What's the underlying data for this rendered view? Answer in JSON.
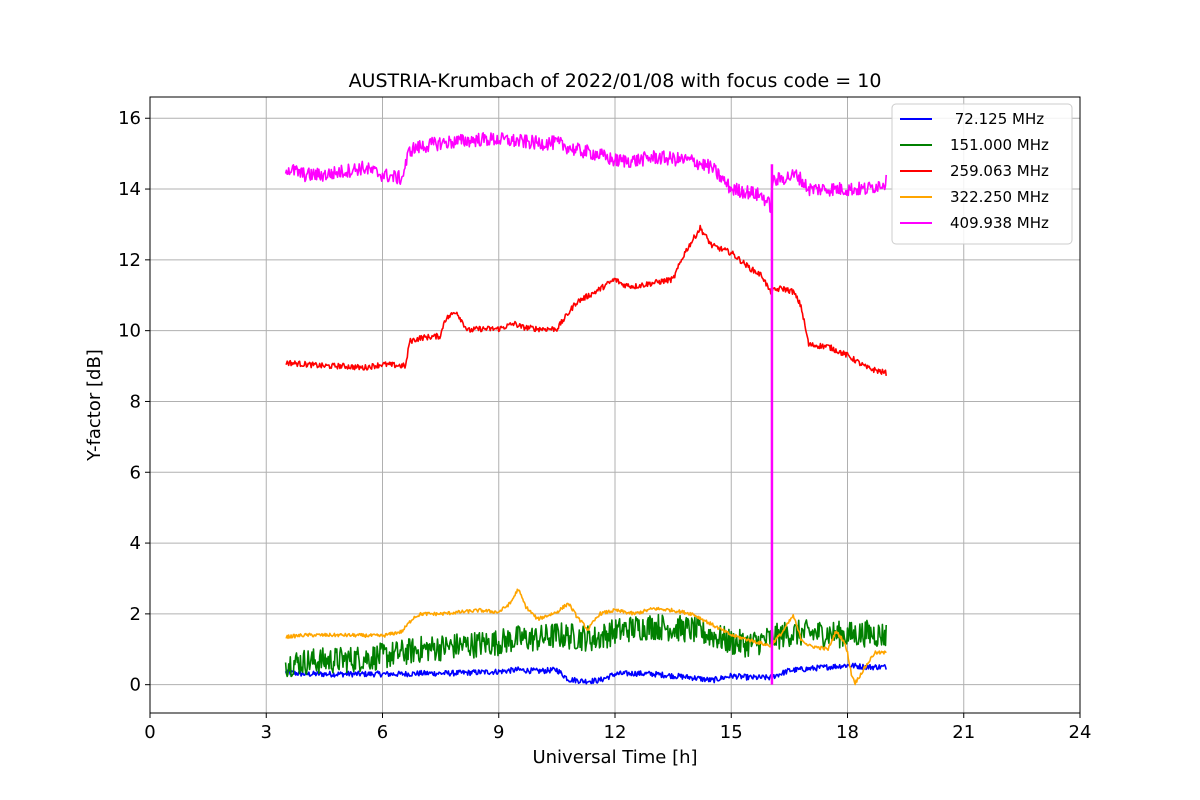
{
  "chart_data": {
    "type": "line",
    "title": "AUSTRIA-Krumbach of 2022/01/08 with focus code = 10",
    "xlabel": "Universal Time [h]",
    "ylabel": "Y-factor [dB]",
    "xlim": [
      0,
      24
    ],
    "ylim": [
      -0.8,
      16.6
    ],
    "xticks": [
      0,
      3,
      6,
      9,
      12,
      15,
      18,
      21,
      24
    ],
    "xtick_labels": [
      "0",
      "3",
      "6",
      "9",
      "12",
      "15",
      "18",
      "21",
      "24"
    ],
    "yticks": [
      0,
      2,
      4,
      6,
      8,
      10,
      12,
      14,
      16
    ],
    "ytick_labels": [
      "0",
      "2",
      "4",
      "6",
      "8",
      "10",
      "12",
      "14",
      "16"
    ],
    "grid": true,
    "legend_position": "top-right",
    "series": [
      {
        "name": " 72.125 MHz",
        "color": "#0000ff",
        "noise": 0.08,
        "x": [
          3.5,
          4.0,
          4.5,
          5.0,
          5.5,
          6.0,
          6.5,
          7.0,
          7.5,
          8.0,
          8.5,
          9.0,
          9.5,
          10.0,
          10.5,
          10.8,
          11.2,
          11.6,
          12.0,
          12.5,
          13.0,
          13.5,
          14.0,
          14.5,
          15.0,
          15.5,
          16.0,
          16.5,
          17.0,
          17.5,
          18.0,
          18.5,
          19.0
        ],
        "y": [
          0.35,
          0.3,
          0.3,
          0.3,
          0.3,
          0.3,
          0.3,
          0.32,
          0.32,
          0.33,
          0.35,
          0.37,
          0.42,
          0.38,
          0.42,
          0.15,
          0.1,
          0.12,
          0.3,
          0.32,
          0.3,
          0.25,
          0.2,
          0.12,
          0.25,
          0.2,
          0.2,
          0.4,
          0.45,
          0.5,
          0.55,
          0.5,
          0.5
        ]
      },
      {
        "name": "151.000 MHz",
        "color": "#008000",
        "noise": 0.38,
        "x": [
          3.5,
          4.0,
          5.0,
          6.0,
          6.5,
          7.0,
          7.5,
          8.0,
          8.5,
          9.0,
          9.5,
          10.0,
          10.5,
          11.0,
          11.5,
          12.0,
          12.5,
          13.0,
          13.5,
          14.0,
          14.5,
          15.0,
          15.5,
          16.0,
          16.5,
          17.0,
          17.5,
          18.0,
          18.5,
          19.0
        ],
        "y": [
          0.6,
          0.65,
          0.7,
          0.8,
          0.9,
          1.0,
          1.05,
          1.1,
          1.15,
          1.2,
          1.3,
          1.3,
          1.4,
          1.35,
          1.3,
          1.5,
          1.6,
          1.65,
          1.6,
          1.55,
          1.4,
          1.2,
          1.15,
          1.3,
          1.45,
          1.45,
          1.45,
          1.4,
          1.45,
          1.4
        ]
      },
      {
        "name": "259.063 MHz",
        "color": "#ff0000",
        "noise": 0.08,
        "x": [
          3.5,
          4.0,
          4.5,
          5.0,
          5.5,
          6.0,
          6.6,
          6.7,
          7.0,
          7.5,
          7.6,
          7.9,
          8.2,
          8.5,
          9.0,
          9.4,
          9.6,
          10.0,
          10.5,
          11.0,
          11.5,
          12.0,
          12.2,
          12.5,
          13.0,
          13.5,
          13.8,
          14.2,
          14.5,
          15.0,
          15.5,
          15.8,
          16.0,
          16.3,
          16.6,
          16.8,
          17.0,
          17.5,
          18.0,
          18.5,
          19.0
        ],
        "y": [
          9.1,
          9.05,
          9.0,
          9.0,
          8.95,
          9.05,
          9.0,
          9.7,
          9.8,
          9.85,
          10.3,
          10.55,
          10.0,
          10.05,
          10.05,
          10.2,
          10.1,
          10.05,
          10.05,
          10.8,
          11.1,
          11.45,
          11.3,
          11.25,
          11.35,
          11.45,
          12.2,
          12.9,
          12.4,
          12.2,
          11.75,
          11.55,
          11.1,
          11.2,
          11.1,
          10.7,
          9.6,
          9.55,
          9.3,
          8.95,
          8.8
        ]
      },
      {
        "name": "322.250 MHz",
        "color": "#ffa500",
        "noise": 0.05,
        "x": [
          3.5,
          4.0,
          5.0,
          6.0,
          6.5,
          6.8,
          7.0,
          7.5,
          8.0,
          8.5,
          9.0,
          9.3,
          9.5,
          9.7,
          10.0,
          10.5,
          10.8,
          11.0,
          11.3,
          11.6,
          12.0,
          12.5,
          13.0,
          13.5,
          14.0,
          14.5,
          15.0,
          15.5,
          16.0,
          16.3,
          16.6,
          16.8,
          17.0,
          17.5,
          17.7,
          17.9,
          18.0,
          18.1,
          18.2,
          18.4,
          18.7,
          19.0
        ],
        "y": [
          1.35,
          1.4,
          1.4,
          1.38,
          1.5,
          1.9,
          2.0,
          2.0,
          2.05,
          2.1,
          2.05,
          2.3,
          2.7,
          2.2,
          1.85,
          2.05,
          2.3,
          1.95,
          1.55,
          2.0,
          2.1,
          2.0,
          2.15,
          2.1,
          2.0,
          1.7,
          1.4,
          1.25,
          1.1,
          1.45,
          1.95,
          1.3,
          1.1,
          1.0,
          1.5,
          1.25,
          0.9,
          0.3,
          0.05,
          0.4,
          0.9,
          0.9
        ]
      },
      {
        "name": "409.938 MHz",
        "color": "#ff00ff",
        "noise": 0.2,
        "x": [
          3.5,
          4.0,
          4.5,
          5.0,
          5.5,
          6.0,
          6.5,
          6.7,
          7.0,
          7.5,
          8.0,
          8.5,
          9.0,
          9.5,
          10.0,
          10.5,
          11.0,
          11.5,
          12.0,
          12.5,
          13.0,
          13.5,
          14.0,
          14.5,
          15.0,
          15.5,
          15.8,
          16.03,
          16.06,
          16.3,
          16.7,
          17.0,
          17.5,
          18.0,
          18.5,
          19.0
        ],
        "y": [
          14.6,
          14.4,
          14.4,
          14.5,
          14.6,
          14.4,
          14.3,
          15.1,
          15.2,
          15.3,
          15.35,
          15.4,
          15.4,
          15.35,
          15.3,
          15.3,
          15.1,
          15.0,
          14.8,
          14.8,
          14.9,
          14.85,
          14.8,
          14.6,
          14.0,
          13.9,
          13.8,
          13.5,
          14.2,
          14.3,
          14.4,
          14.0,
          14.0,
          14.0,
          14.0,
          14.2
        ]
      }
    ],
    "annotation_line": {
      "color": "#ff00ff",
      "x": 16.05,
      "y_from": 0.0,
      "y_to": 14.7
    }
  }
}
